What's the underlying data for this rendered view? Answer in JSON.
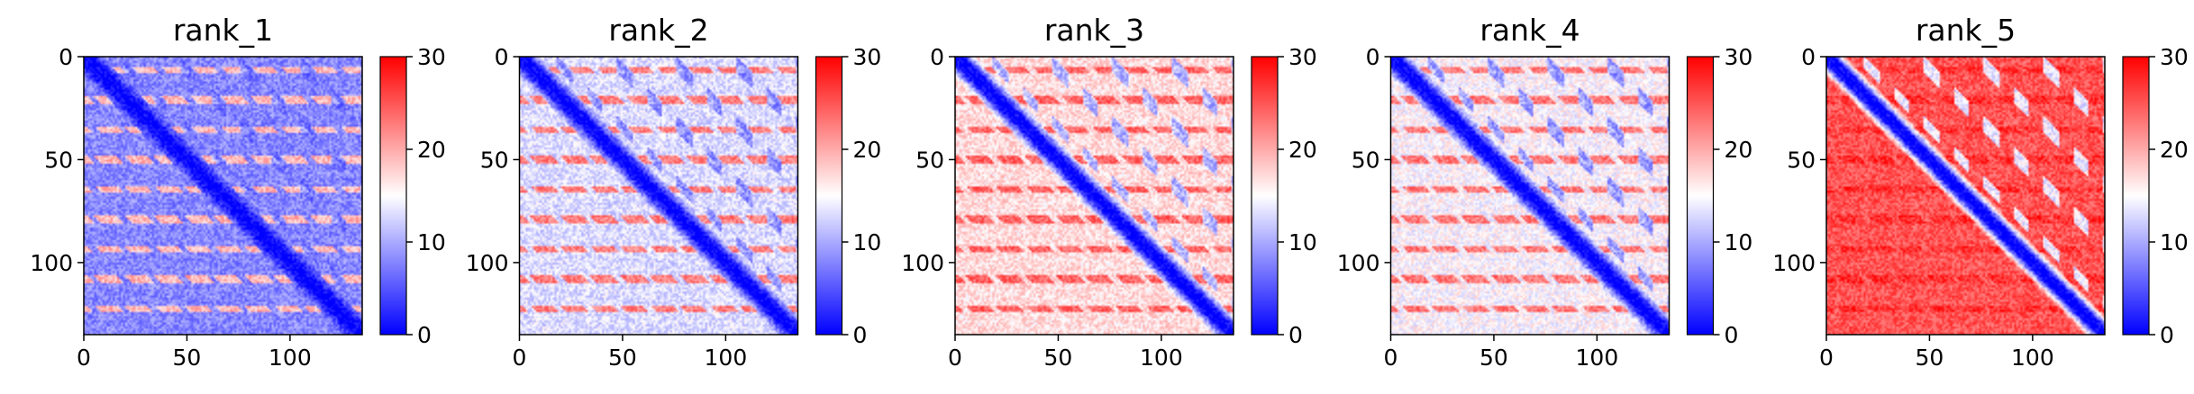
{
  "figure": {
    "colorscale": [
      "#0000ff",
      "#ffffff",
      "#ff0000"
    ]
  },
  "chart_data": [
    {
      "type": "heatmap",
      "title": "rank_1",
      "xlabel": "",
      "ylabel": "",
      "x_range": [
        0,
        135
      ],
      "y_range": [
        0,
        135
      ],
      "y_inverted": true,
      "x_ticks": [
        0,
        50,
        100
      ],
      "y_ticks": [
        0,
        50,
        100
      ],
      "colorbar": {
        "vmin": 0,
        "vmax": 30,
        "ticks": [
          0,
          10,
          20,
          30
        ]
      },
      "pattern": {
        "period": 14.5,
        "near_diagonal": 0,
        "mean_level": 7,
        "bright_bands": 22,
        "spot_level": 6,
        "background_level": 8
      }
    },
    {
      "type": "heatmap",
      "title": "rank_2",
      "xlabel": "",
      "ylabel": "",
      "x_range": [
        0,
        135
      ],
      "y_range": [
        0,
        135
      ],
      "y_inverted": true,
      "x_ticks": [
        0,
        50,
        100
      ],
      "y_ticks": [
        0,
        50,
        100
      ],
      "colorbar": {
        "vmin": 0,
        "vmax": 30,
        "ticks": [
          0,
          10,
          20,
          30
        ]
      },
      "pattern": {
        "period": 14.5,
        "near_diagonal": 0,
        "mean_level": 12,
        "bright_bands": 25,
        "spot_level": 6,
        "background_level": 13
      }
    },
    {
      "type": "heatmap",
      "title": "rank_3",
      "xlabel": "",
      "ylabel": "",
      "x_range": [
        0,
        135
      ],
      "y_range": [
        0,
        135
      ],
      "y_inverted": true,
      "x_ticks": [
        0,
        50,
        100
      ],
      "y_ticks": [
        0,
        50,
        100
      ],
      "colorbar": {
        "vmin": 0,
        "vmax": 30,
        "ticks": [
          0,
          10,
          20,
          30
        ]
      },
      "pattern": {
        "period": 14.5,
        "near_diagonal": 0,
        "mean_level": 16,
        "bright_bands": 26,
        "spot_level": 7,
        "background_level": 17
      }
    },
    {
      "type": "heatmap",
      "title": "rank_4",
      "xlabel": "",
      "ylabel": "",
      "x_range": [
        0,
        135
      ],
      "y_range": [
        0,
        135
      ],
      "y_inverted": true,
      "x_ticks": [
        0,
        50,
        100
      ],
      "y_ticks": [
        0,
        50,
        100
      ],
      "colorbar": {
        "vmin": 0,
        "vmax": 30,
        "ticks": [
          0,
          10,
          20,
          30
        ]
      },
      "pattern": {
        "period": 14.5,
        "near_diagonal": 0,
        "mean_level": 14,
        "bright_bands": 25,
        "spot_level": 6,
        "background_level": 15
      }
    },
    {
      "type": "heatmap",
      "title": "rank_5",
      "xlabel": "",
      "ylabel": "",
      "x_range": [
        0,
        135
      ],
      "y_range": [
        0,
        135
      ],
      "y_inverted": true,
      "x_ticks": [
        0,
        50,
        100
      ],
      "y_ticks": [
        0,
        50,
        100
      ],
      "colorbar": {
        "vmin": 0,
        "vmax": 30,
        "ticks": [
          0,
          10,
          20,
          30
        ]
      },
      "pattern": {
        "period": 14.5,
        "near_diagonal": 0,
        "mean_level": 24,
        "bright_bands": 28,
        "spot_level": 9,
        "background_level": 25
      }
    }
  ]
}
